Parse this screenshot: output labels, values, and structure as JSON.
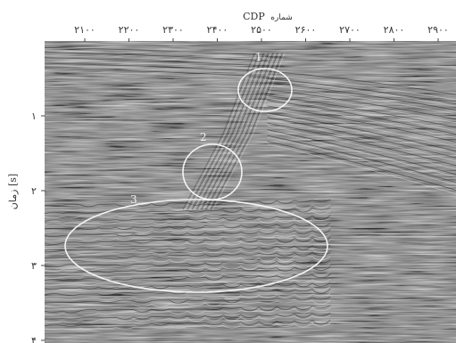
{
  "figure": {
    "top_axis": {
      "title_latin": "CDP",
      "title_persian": "شماره",
      "tick_labels": [
        "۲۱۰۰",
        "۲۲۰۰",
        "۲۳۰۰",
        "۲۴۰۰",
        "۲۵۰۰",
        "۲۶۰۰",
        "۲۷۰۰",
        "۲۸۰۰",
        "۲۹۰۰"
      ]
    },
    "left_axis": {
      "title": "زمان [s]",
      "tick_labels": [
        "۱",
        "۲",
        "۳",
        "۴"
      ]
    },
    "annotations": [
      {
        "label": "1"
      },
      {
        "label": "2"
      },
      {
        "label": "3"
      }
    ],
    "colors": {
      "background": "#ffffff",
      "annotation": "#f4f4f4"
    }
  }
}
